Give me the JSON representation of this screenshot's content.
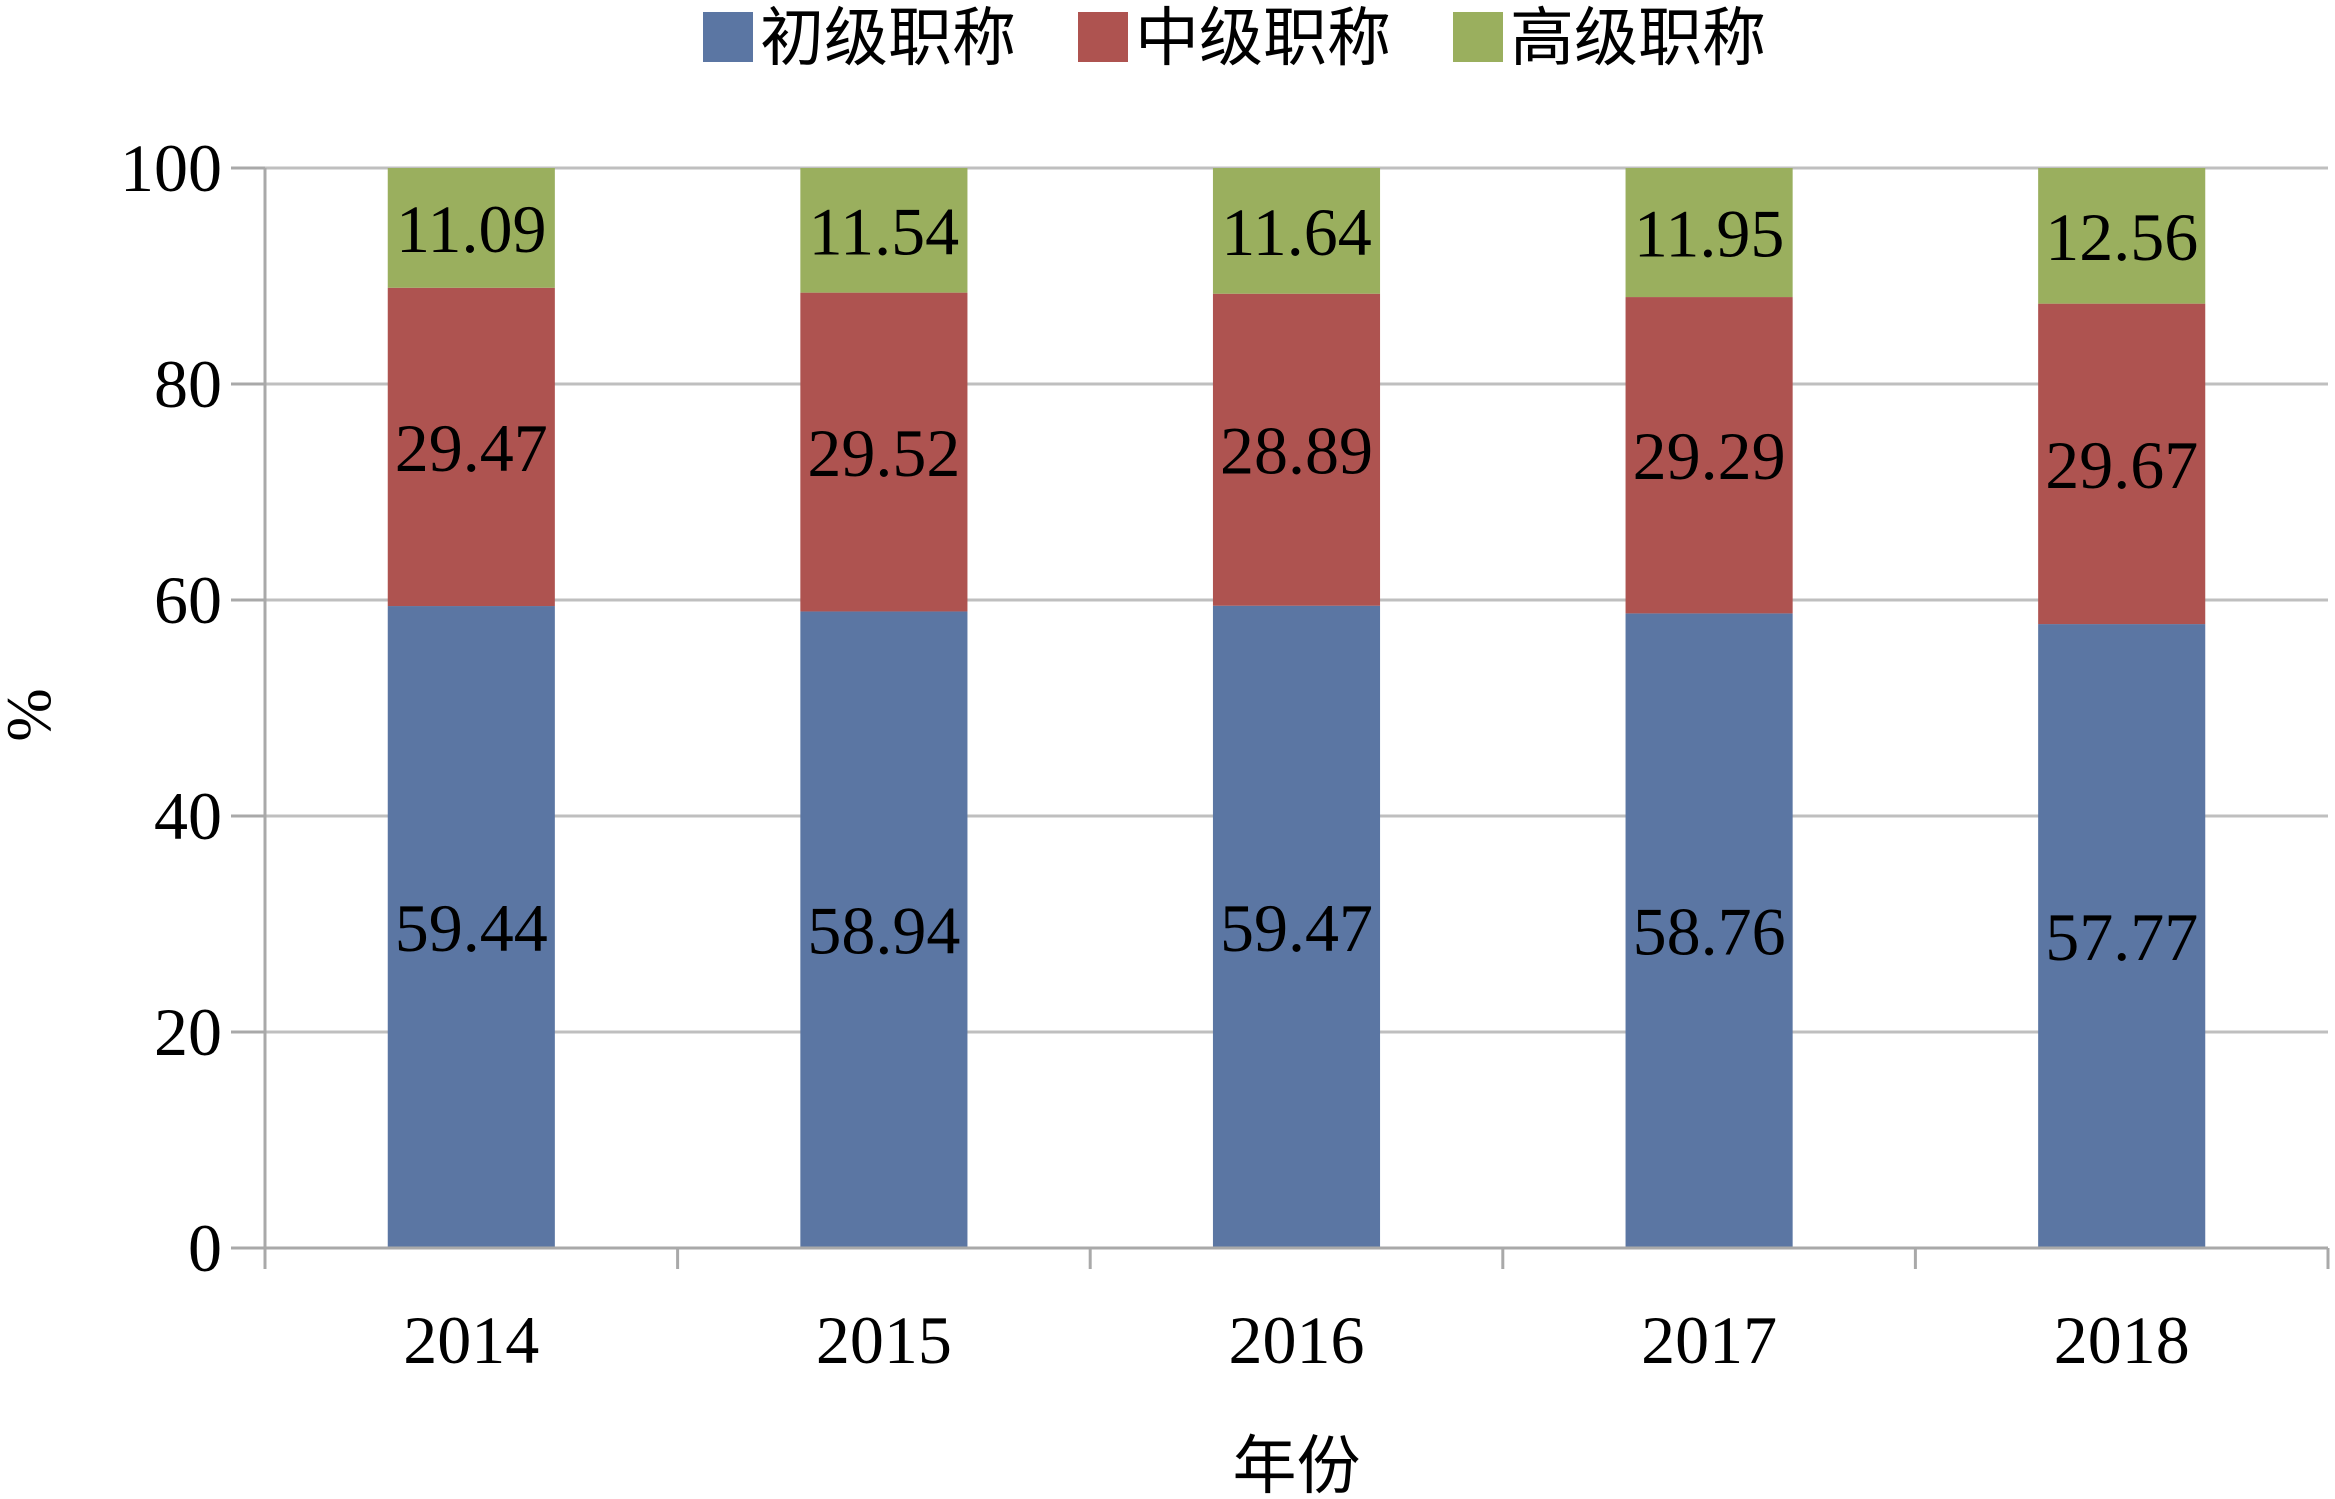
{
  "chart_data": {
    "type": "bar",
    "stacked": true,
    "categories": [
      "2014",
      "2015",
      "2016",
      "2017",
      "2018"
    ],
    "series": [
      {
        "name": "初级职称",
        "color": "#5B76A3",
        "values": [
          59.44,
          58.94,
          59.47,
          58.76,
          57.77
        ]
      },
      {
        "name": "中级职称",
        "color": "#AE5350",
        "values": [
          29.47,
          29.52,
          28.89,
          29.29,
          29.67
        ]
      },
      {
        "name": "高级职称",
        "color": "#9AAF5E",
        "values": [
          11.09,
          11.54,
          11.64,
          11.95,
          12.56
        ]
      }
    ],
    "xlabel": "年份",
    "ylabel": "%",
    "ylim": [
      0,
      100
    ],
    "yticks": [
      0,
      20,
      40,
      60,
      80,
      100
    ],
    "grid": true,
    "legend_position": "top",
    "data_labels": true
  }
}
